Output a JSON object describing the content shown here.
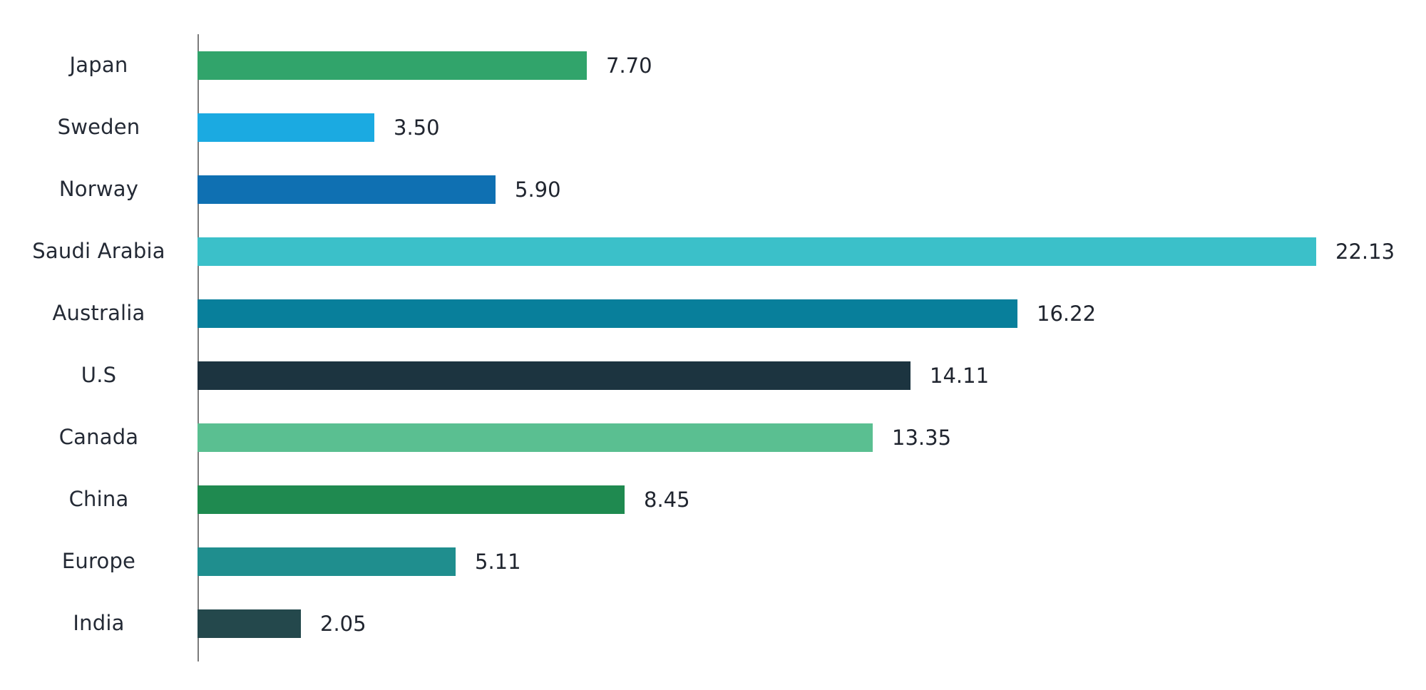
{
  "chart_data": {
    "type": "bar",
    "orientation": "horizontal",
    "title": "",
    "xlabel": "",
    "ylabel": "",
    "categories": [
      "Japan",
      "Sweden",
      "Norway",
      "Saudi Arabia",
      "Australia",
      "U.S",
      "Canada",
      "China",
      "Europe",
      "India"
    ],
    "values": [
      7.7,
      3.5,
      5.9,
      22.13,
      16.22,
      14.11,
      13.35,
      8.45,
      5.11,
      2.05
    ],
    "value_labels": [
      "7.70",
      "3.50",
      "5.90",
      "22.13",
      "16.22",
      "14.11",
      "13.35",
      "8.45",
      "5.11",
      "2.05"
    ],
    "bar_colors": [
      "#31a46b",
      "#1baae1",
      "#0f70b2",
      "#3bc0c9",
      "#087f9b",
      "#1c3440",
      "#5abf91",
      "#1f8a50",
      "#1f8e8e",
      "#24484c"
    ],
    "xlim": [
      0,
      24.3
    ],
    "grid": false,
    "legend": false,
    "axis_line_color": "#7b7b7b",
    "label_text_color": "#242a35",
    "value_text_color": "#20252f"
  }
}
